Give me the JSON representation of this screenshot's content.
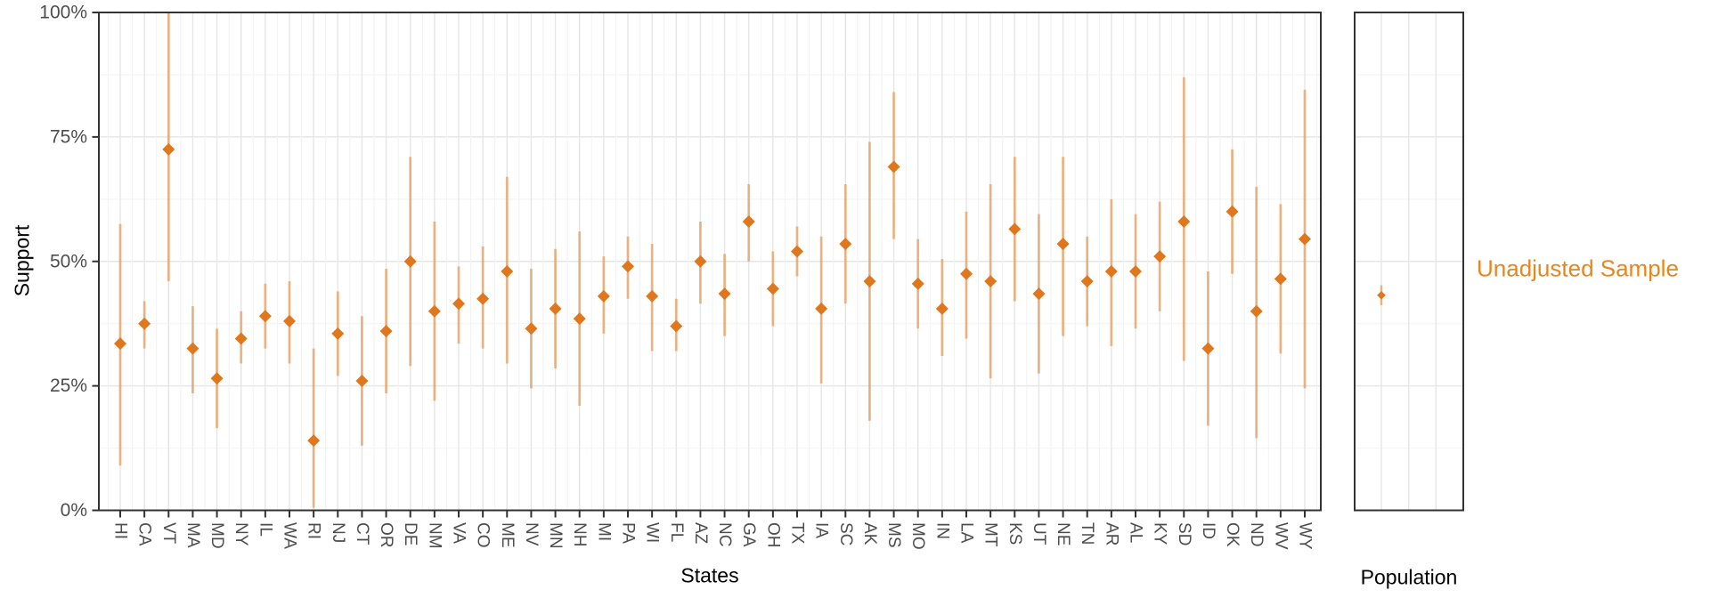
{
  "figure": {
    "y_axis_title": "Support",
    "legend_label": "Unadjusted Sample"
  },
  "chart_data": {
    "type": "scatter",
    "subtype": "pointrange",
    "title": "",
    "xlabel": "States",
    "ylabel": "Support",
    "ylim": [
      0,
      100
    ],
    "grid": true,
    "ytick_values": [
      0,
      25,
      50,
      75,
      100
    ],
    "ytick_labels": [
      "0%",
      "25%",
      "50%",
      "75%",
      "100%"
    ],
    "legend": {
      "label": "Unadjusted Sample",
      "position": "right"
    },
    "panels": [
      {
        "title": "States",
        "categories": [
          "HI",
          "CA",
          "VT",
          "MA",
          "MD",
          "NY",
          "IL",
          "WA",
          "RI",
          "NJ",
          "CT",
          "OR",
          "DE",
          "NM",
          "VA",
          "CO",
          "ME",
          "NV",
          "MN",
          "NH",
          "MI",
          "PA",
          "WI",
          "FL",
          "AZ",
          "NC",
          "GA",
          "OH",
          "TX",
          "IA",
          "SC",
          "AK",
          "MS",
          "MO",
          "IN",
          "LA",
          "MT",
          "KS",
          "UT",
          "NE",
          "TN",
          "AR",
          "AL",
          "KY",
          "SD",
          "ID",
          "OK",
          "ND",
          "WV",
          "WY"
        ],
        "series": [
          {
            "name": "Unadjusted Sample",
            "values": [
              33.5,
              37.5,
              72.5,
              32.5,
              26.5,
              34.5,
              39,
              38,
              14,
              35.5,
              26,
              36,
              50,
              40,
              41.5,
              42.5,
              48,
              36.5,
              40.5,
              38.5,
              43,
              49,
              43,
              37,
              50,
              43.5,
              58,
              44.5,
              52,
              40.5,
              53.5,
              46,
              69,
              45.5,
              40.5,
              47.5,
              46,
              56.5,
              43.5,
              53.5,
              46,
              48,
              48,
              51,
              58,
              32.5,
              60,
              40,
              46.5,
              54.5
            ],
            "ci_low": [
              9,
              32.5,
              46,
              23.5,
              16.5,
              29.5,
              32.5,
              29.5,
              0.5,
              27,
              13,
              23.5,
              29,
              22,
              33.5,
              32.5,
              29.5,
              24.5,
              28.5,
              21,
              35.5,
              42.5,
              32,
              32,
              41.5,
              35,
              50,
              37,
              47,
              25.5,
              41.5,
              18,
              54.5,
              36.5,
              31,
              34.5,
              26.5,
              42,
              27.5,
              35,
              37,
              33,
              36.5,
              40,
              30,
              17,
              47.5,
              14.5,
              31.5,
              24.5
            ],
            "ci_high": [
              57.5,
              42,
              100,
              41,
              36.5,
              40,
              45.5,
              46,
              32.5,
              44,
              39,
              48.5,
              71,
              58,
              49,
              53,
              67,
              48.5,
              52.5,
              56,
              51,
              55,
              53.5,
              42.5,
              58,
              51.5,
              65.5,
              52,
              57,
              55,
              65.5,
              74,
              84,
              54.5,
              50.5,
              60,
              65.5,
              71,
              59.5,
              71,
              55,
              62.5,
              59.5,
              62,
              87,
              48,
              72.5,
              65,
              61.5,
              84.5
            ]
          }
        ]
      },
      {
        "title": "Population",
        "categories": [
          "Population"
        ],
        "series": [
          {
            "name": "Unadjusted Sample",
            "values": [
              43.2
            ],
            "ci_low": [
              41.2
            ],
            "ci_high": [
              45.2
            ]
          }
        ]
      }
    ],
    "colors": {
      "point": "#e0771d",
      "interval": "rgba(224,119,29,0.5)",
      "legend_text": "#e8861e",
      "grid_major": "#e6e6e6",
      "grid_minor": "#f2f2f2",
      "panel_border": "#333333",
      "tick_mark": "#333333",
      "tick_label": "#4d4d4d",
      "axis_title": "#000000"
    }
  }
}
